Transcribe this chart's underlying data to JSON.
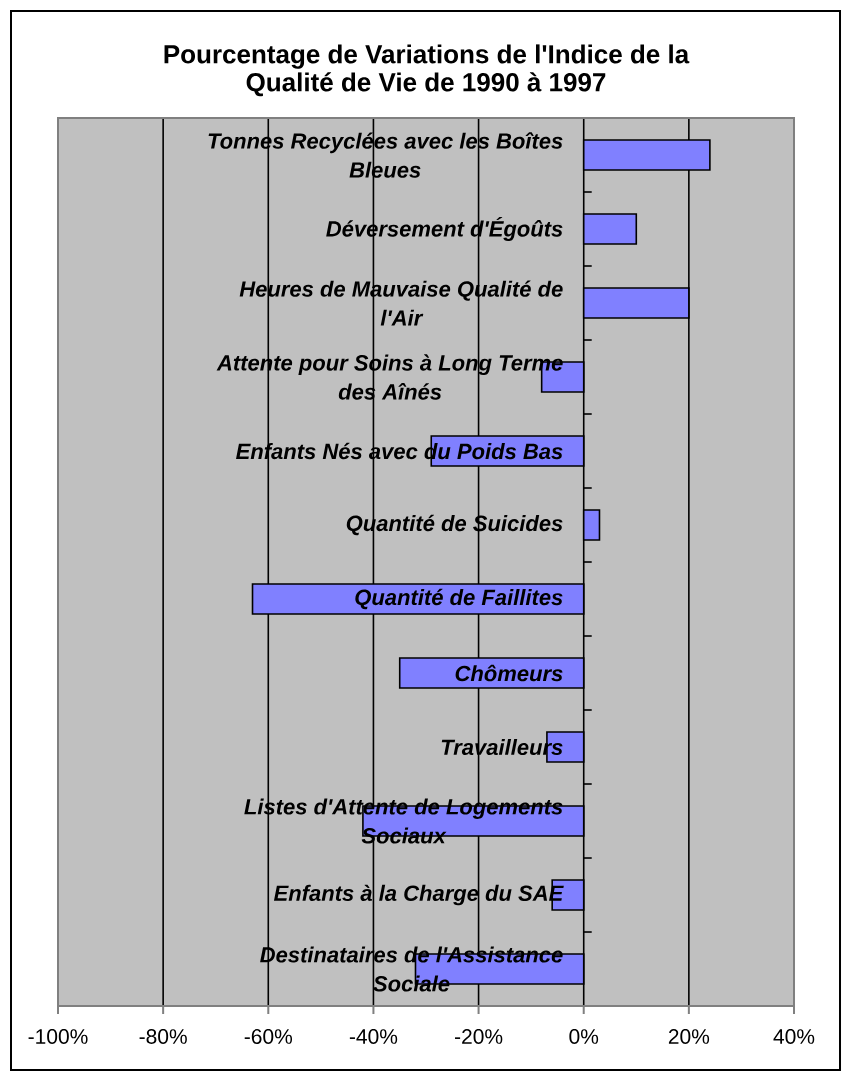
{
  "chart_data": {
    "type": "bar",
    "orientation": "horizontal",
    "title": "Pourcentage de Variations de l'Indice de la Qualité de Vie de 1990 à 1997",
    "categories": [
      "Tonnes Recyclées avec les Boîtes Bleues",
      "Déversement d'Égoûts",
      "Heures de Mauvaise Qualité de l'Air",
      "Attente pour Soins à Long Terme des Aînés",
      "Enfants Nés avec du Poids Bas",
      "Quantité de Suicides",
      "Quantité de Faillites",
      "Chômeurs",
      "Travailleurs",
      "Listes d'Attente de Logements Sociaux",
      "Enfants à la Charge du SAE",
      "Destinataires de l'Assistance Sociale"
    ],
    "values": [
      24,
      10,
      20,
      -8,
      -29,
      3,
      -63,
      -35,
      -7,
      -42,
      -6,
      -32
    ],
    "color": "#8080ff",
    "xlim": [
      -100,
      40
    ],
    "xticks": [
      {
        "value": -100,
        "label": "-100%"
      },
      {
        "value": -80,
        "label": "-80%"
      },
      {
        "value": -60,
        "label": "-60%"
      },
      {
        "value": -40,
        "label": "-40%"
      },
      {
        "value": -20,
        "label": "-20%"
      },
      {
        "value": 0,
        "label": "0%"
      },
      {
        "value": 20,
        "label": "20%"
      },
      {
        "value": 40,
        "label": "40%"
      }
    ],
    "grid": "x"
  }
}
